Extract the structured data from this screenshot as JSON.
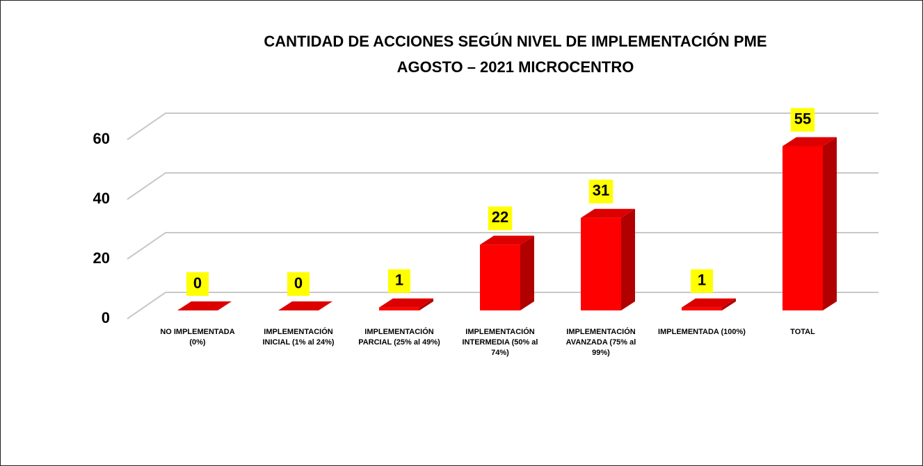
{
  "chart_data": {
    "type": "bar3d",
    "title": [
      "CANTIDAD DE ACCIONES SEGÚN NIVEL DE IMPLEMENTACIÓN  PME",
      "AGOSTO – 2021 MICROCENTRO"
    ],
    "categories": [
      "NO IMPLEMENTADA (0%)",
      "IMPLEMENTACIÓN INICIAL (1% al 24%)",
      "IMPLEMENTACIÓN PARCIAL (25% al 49%)",
      "IMPLEMENTACIÓN INTERMEDIA (50% al 74%)",
      "IMPLEMENTACIÓN AVANZADA (75% al 99%)",
      "IMPLEMENTADA (100%)",
      "TOTAL"
    ],
    "values": [
      0,
      0,
      1,
      22,
      31,
      1,
      55
    ],
    "color": "#ff0000",
    "label_background": "#ffff00",
    "ylim": [
      0,
      60
    ],
    "yticks": [
      0,
      20,
      40,
      60
    ],
    "grid": true
  }
}
